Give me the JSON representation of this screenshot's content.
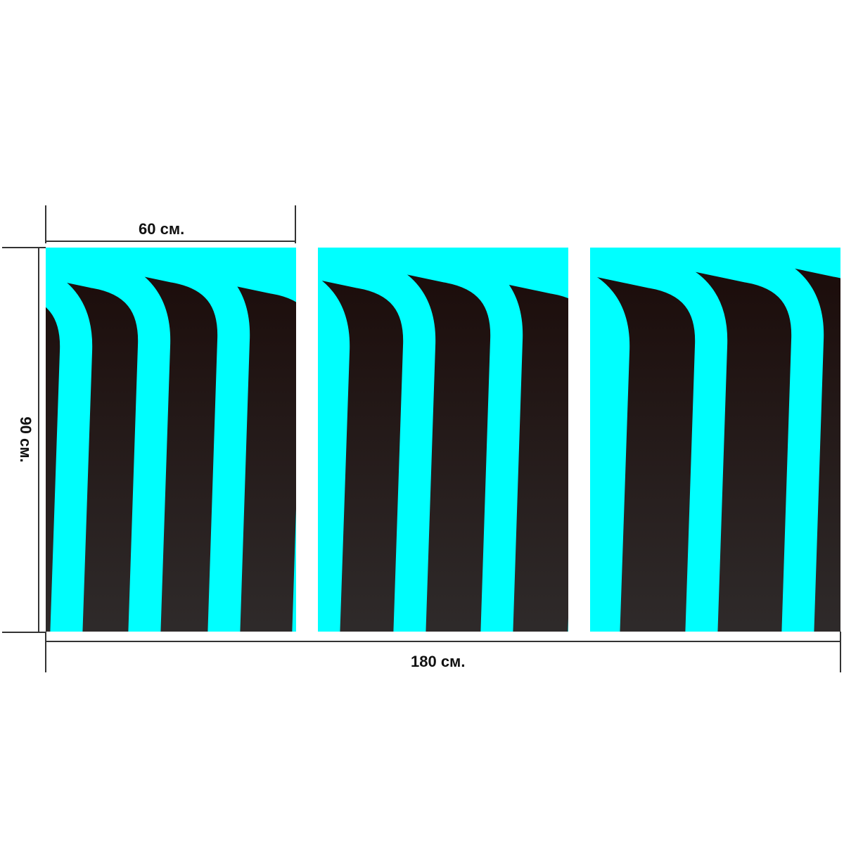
{
  "dimensions": {
    "panel_width": "60 см.",
    "height": "90 см.",
    "total_width": "180 см."
  },
  "colors": {
    "stripe": "#00ffff",
    "background_top": "#1a0a08",
    "background_bottom": "#2f2b2b"
  },
  "panels": 3
}
